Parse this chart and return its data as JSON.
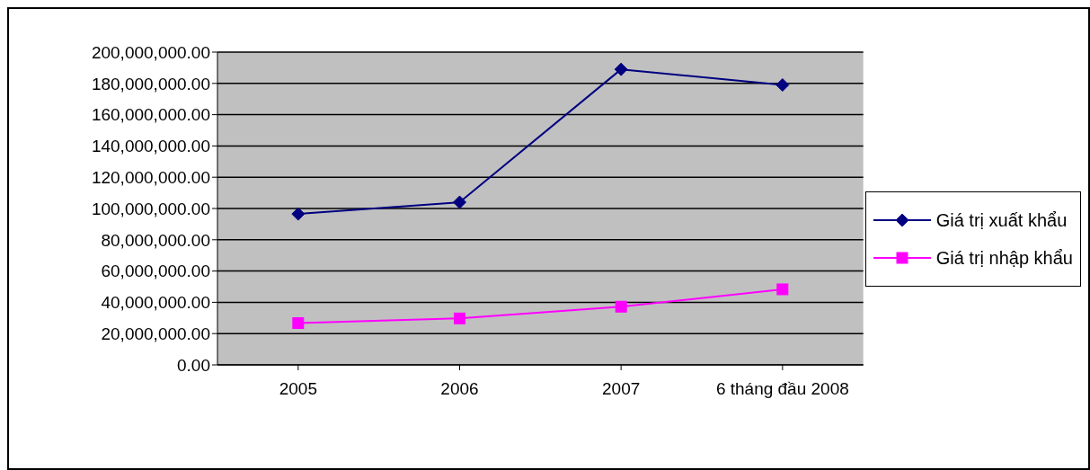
{
  "chart_data": {
    "type": "line",
    "categories": [
      "2005",
      "2006",
      "2007",
      "6 tháng đầu 2008"
    ],
    "series": [
      {
        "name": "Giá trị xuất khẩu",
        "color": "#000080",
        "values": [
          96500000,
          104000000,
          189000000,
          179000000
        ]
      },
      {
        "name": "Giá trị nhập khẩu",
        "color": "#ff00ff",
        "values": [
          26700000,
          29700000,
          37200000,
          48300000
        ]
      }
    ],
    "ylim": [
      0,
      200000000
    ],
    "yticks": [
      {
        "value": 0,
        "label": "0.00"
      },
      {
        "value": 20000000,
        "label": "20,000,000.00"
      },
      {
        "value": 40000000,
        "label": "40,000,000.00"
      },
      {
        "value": 60000000,
        "label": "60,000,000.00"
      },
      {
        "value": 80000000,
        "label": "80,000,000.00"
      },
      {
        "value": 100000000,
        "label": "100,000,000.00"
      },
      {
        "value": 120000000,
        "label": "120,000,000.00"
      },
      {
        "value": 140000000,
        "label": "140,000,000.00"
      },
      {
        "value": 160000000,
        "label": "160,000,000.00"
      },
      {
        "value": 180000000,
        "label": "180,000,000.00"
      },
      {
        "value": 200000000,
        "label": "200,000,000.00"
      }
    ],
    "grid": "y",
    "legend": "right",
    "marker": [
      "diamond",
      "square"
    ],
    "line_style": "solid"
  }
}
